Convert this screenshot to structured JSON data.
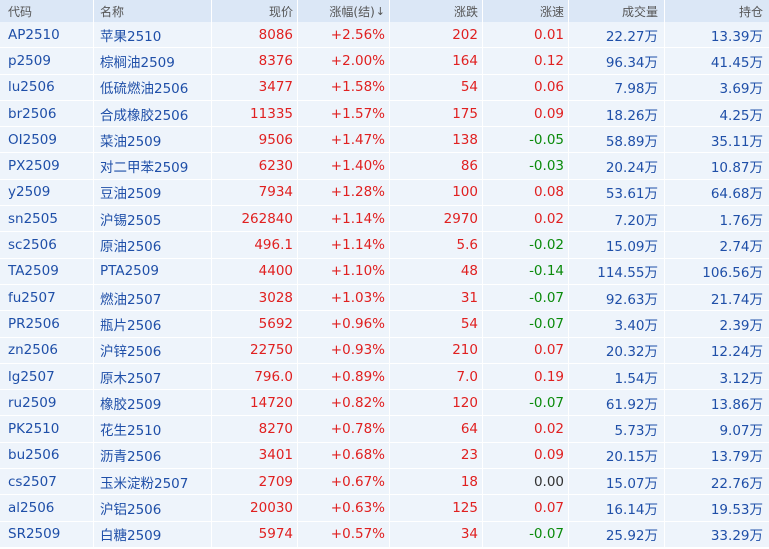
{
  "headers": {
    "code": "代码",
    "name": "名称",
    "price": "现价",
    "pct": "涨幅(结)",
    "change": "涨跌",
    "speed": "涨速",
    "volume": "成交量",
    "oi": "持仓"
  },
  "sort_icon": "↓",
  "colors": {
    "up": "#e02020",
    "down": "#0a8a0a",
    "flat": "#333333",
    "link": "#1f4fa8",
    "row_bg": "#eef4fb",
    "header_bg": "#dbe7f6"
  },
  "rows": [
    {
      "code": "AP2510",
      "name": "苹果2510",
      "price": "8086",
      "pct": "+2.56%",
      "change": "202",
      "speed": "0.01",
      "speed_dir": "up",
      "volume": "22.27万",
      "oi": "13.39万"
    },
    {
      "code": "p2509",
      "name": "棕榈油2509",
      "price": "8376",
      "pct": "+2.00%",
      "change": "164",
      "speed": "0.12",
      "speed_dir": "up",
      "volume": "96.34万",
      "oi": "41.45万"
    },
    {
      "code": "lu2506",
      "name": "低硫燃油2506",
      "price": "3477",
      "pct": "+1.58%",
      "change": "54",
      "speed": "0.06",
      "speed_dir": "up",
      "volume": "7.98万",
      "oi": "3.69万"
    },
    {
      "code": "br2506",
      "name": "合成橡胶2506",
      "price": "11335",
      "pct": "+1.57%",
      "change": "175",
      "speed": "0.09",
      "speed_dir": "up",
      "volume": "18.26万",
      "oi": "4.25万"
    },
    {
      "code": "OI2509",
      "name": "菜油2509",
      "price": "9506",
      "pct": "+1.47%",
      "change": "138",
      "speed": "-0.05",
      "speed_dir": "down",
      "volume": "58.89万",
      "oi": "35.11万"
    },
    {
      "code": "PX2509",
      "name": "对二甲苯2509",
      "price": "6230",
      "pct": "+1.40%",
      "change": "86",
      "speed": "-0.03",
      "speed_dir": "down",
      "volume": "20.24万",
      "oi": "10.87万"
    },
    {
      "code": "y2509",
      "name": "豆油2509",
      "price": "7934",
      "pct": "+1.28%",
      "change": "100",
      "speed": "0.08",
      "speed_dir": "up",
      "volume": "53.61万",
      "oi": "64.68万"
    },
    {
      "code": "sn2505",
      "name": "沪锡2505",
      "price": "262840",
      "pct": "+1.14%",
      "change": "2970",
      "speed": "0.02",
      "speed_dir": "up",
      "volume": "7.20万",
      "oi": "1.76万"
    },
    {
      "code": "sc2506",
      "name": "原油2506",
      "price": "496.1",
      "pct": "+1.14%",
      "change": "5.6",
      "speed": "-0.02",
      "speed_dir": "down",
      "volume": "15.09万",
      "oi": "2.74万"
    },
    {
      "code": "TA2509",
      "name": "PTA2509",
      "price": "4400",
      "pct": "+1.10%",
      "change": "48",
      "speed": "-0.14",
      "speed_dir": "down",
      "volume": "114.55万",
      "oi": "106.56万"
    },
    {
      "code": "fu2507",
      "name": "燃油2507",
      "price": "3028",
      "pct": "+1.03%",
      "change": "31",
      "speed": "-0.07",
      "speed_dir": "down",
      "volume": "92.63万",
      "oi": "21.74万"
    },
    {
      "code": "PR2506",
      "name": "瓶片2506",
      "price": "5692",
      "pct": "+0.96%",
      "change": "54",
      "speed": "-0.07",
      "speed_dir": "down",
      "volume": "3.40万",
      "oi": "2.39万"
    },
    {
      "code": "zn2506",
      "name": "沪锌2506",
      "price": "22750",
      "pct": "+0.93%",
      "change": "210",
      "speed": "0.07",
      "speed_dir": "up",
      "volume": "20.32万",
      "oi": "12.24万"
    },
    {
      "code": "lg2507",
      "name": "原木2507",
      "price": "796.0",
      "pct": "+0.89%",
      "change": "7.0",
      "speed": "0.19",
      "speed_dir": "up",
      "volume": "1.54万",
      "oi": "3.12万"
    },
    {
      "code": "ru2509",
      "name": "橡胶2509",
      "price": "14720",
      "pct": "+0.82%",
      "change": "120",
      "speed": "-0.07",
      "speed_dir": "down",
      "volume": "61.92万",
      "oi": "13.86万"
    },
    {
      "code": "PK2510",
      "name": "花生2510",
      "price": "8270",
      "pct": "+0.78%",
      "change": "64",
      "speed": "0.02",
      "speed_dir": "up",
      "volume": "5.73万",
      "oi": "9.07万"
    },
    {
      "code": "bu2506",
      "name": "沥青2506",
      "price": "3401",
      "pct": "+0.68%",
      "change": "23",
      "speed": "0.09",
      "speed_dir": "up",
      "volume": "20.15万",
      "oi": "13.79万"
    },
    {
      "code": "cs2507",
      "name": "玉米淀粉2507",
      "price": "2709",
      "pct": "+0.67%",
      "change": "18",
      "speed": "0.00",
      "speed_dir": "flat",
      "volume": "15.07万",
      "oi": "22.76万"
    },
    {
      "code": "al2506",
      "name": "沪铝2506",
      "price": "20030",
      "pct": "+0.63%",
      "change": "125",
      "speed": "0.07",
      "speed_dir": "up",
      "volume": "16.14万",
      "oi": "19.53万"
    },
    {
      "code": "SR2509",
      "name": "白糖2509",
      "price": "5974",
      "pct": "+0.57%",
      "change": "34",
      "speed": "-0.07",
      "speed_dir": "down",
      "volume": "25.92万",
      "oi": "33.29万"
    }
  ]
}
